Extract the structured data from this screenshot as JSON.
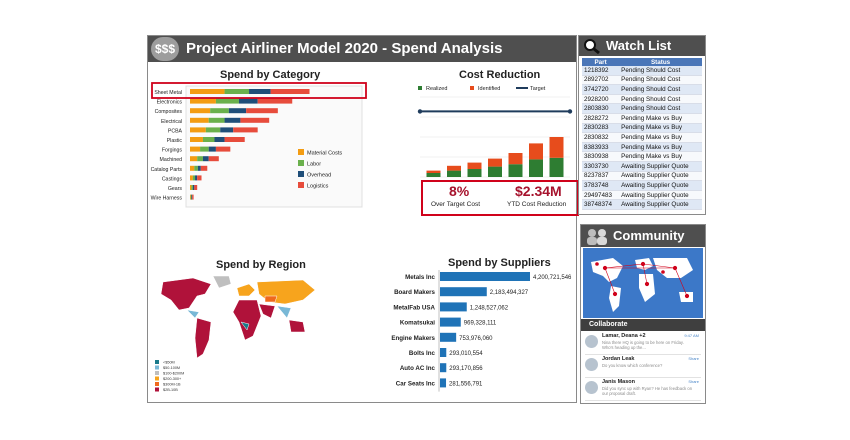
{
  "dashboard": {
    "logo_text": "$$$",
    "title": "Project Airliner Model 2020 - Spend Analysis"
  },
  "category_chart": {
    "title": "Spend by Category",
    "categories": [
      "Sheet Metal",
      "Electronics",
      "Composites",
      "Electrical",
      "PCBA",
      "Plastic",
      "Forgings",
      "Machined",
      "Catalog Parts",
      "Castings",
      "Gears",
      "Wire Harness"
    ],
    "series_names": [
      "Material Costs",
      "Labor",
      "Overhead",
      "Logistics"
    ],
    "colors": [
      "#f39c12",
      "#6ab04c",
      "#1f4e79",
      "#e74c3c"
    ],
    "values": [
      [
        48,
        34,
        30,
        54
      ],
      [
        36,
        32,
        26,
        48
      ],
      [
        28,
        26,
        24,
        44
      ],
      [
        26,
        22,
        22,
        40
      ],
      [
        22,
        20,
        18,
        34
      ],
      [
        18,
        16,
        14,
        28
      ],
      [
        14,
        12,
        10,
        20
      ],
      [
        10,
        8,
        8,
        14
      ],
      [
        6,
        5,
        4,
        9
      ],
      [
        4,
        3,
        3,
        6
      ],
      [
        2,
        2,
        2,
        4
      ],
      [
        1,
        1,
        1,
        2
      ]
    ]
  },
  "cost_reduction": {
    "title": "Cost Reduction",
    "legend": [
      "Realized",
      "Identified",
      "Target"
    ],
    "colors": {
      "realized": "#2e7d32",
      "identified": "#e74c1c",
      "target": "#1f3c5c"
    },
    "realized": [
      5,
      8,
      10,
      13,
      16,
      22,
      24
    ],
    "identified": [
      3,
      6,
      8,
      10,
      14,
      20,
      26
    ],
    "target": 82,
    "ymax": 100,
    "kpi_pct": "8%",
    "kpi_pct_label": "Over Target Cost",
    "kpi_amount": "$2.34M",
    "kpi_amount_label": "YTD Cost Reduction"
  },
  "region": {
    "title": "Spend by Region",
    "legend": [
      {
        "label": "<$50M",
        "color": "#1a7a8a"
      },
      {
        "label": "$50-100M",
        "color": "#79b8d6"
      },
      {
        "label": "$100-$200M",
        "color": "#bfbfbf"
      },
      {
        "label": "$200-300+",
        "color": "#f7a41d"
      },
      {
        "label": "$300M-1B",
        "color": "#f06a1c"
      },
      {
        "label": "$2B-10B",
        "color": "#b0123a"
      }
    ]
  },
  "suppliers": {
    "title": "Spend by Suppliers",
    "color": "#1f73b7",
    "items": [
      {
        "name": "Metals Inc",
        "value": 4200721546,
        "label": "4,200,721,546"
      },
      {
        "name": "Board Makers",
        "value": 2183494327,
        "label": "2,183,494,327"
      },
      {
        "name": "MetalFab USA",
        "value": 1248527062,
        "label": "1,248,527,062"
      },
      {
        "name": "Komatsukai",
        "value": 969328111,
        "label": "969,328,111"
      },
      {
        "name": "Engine Makers",
        "value": 753976060,
        "label": "753,976,060"
      },
      {
        "name": "Bolts Inc",
        "value": 293010554,
        "label": "293,010,554"
      },
      {
        "name": "Auto AC Inc",
        "value": 293170856,
        "label": "293,170,856"
      },
      {
        "name": "Car Seats Inc",
        "value": 281556791,
        "label": "281,556,791"
      }
    ]
  },
  "watch_list": {
    "title": "Watch List",
    "columns": [
      "Part",
      "Status"
    ],
    "rows": [
      [
        "1218392",
        "Pending Should Cost"
      ],
      [
        "2892702",
        "Pending Should Cost"
      ],
      [
        "3742720",
        "Pending Should Cost"
      ],
      [
        "2928200",
        "Pending Should Cost"
      ],
      [
        "2803830",
        "Pending Should Cost"
      ],
      [
        "2828272",
        "Pending Make vs Buy"
      ],
      [
        "2830283",
        "Pending Make vs Buy"
      ],
      [
        "2830832",
        "Pending Make vs Buy"
      ],
      [
        "8383933",
        "Pending Make vs Buy"
      ],
      [
        "3830938",
        "Pending Make vs Buy"
      ],
      [
        "3303730",
        "Awaiting Supplier Quote"
      ],
      [
        "8237837",
        "Awaiting Supplier Quote"
      ],
      [
        "3783748",
        "Awaiting Supplier Quote"
      ],
      [
        "29497483",
        "Awaiting Supplier Quote"
      ],
      [
        "38748374",
        "Awaiting Supplier Quote"
      ]
    ]
  },
  "community": {
    "title": "Community",
    "collaborate": "Collaborate",
    "messages": [
      {
        "name": "Lamar, Deana +2",
        "text": "Nina there HQ is going to be here on Friday. Who's heading up the...",
        "time": "9:47 AM"
      },
      {
        "name": "Jordan Leak",
        "text": "Do you know which conference?",
        "time": "Share"
      },
      {
        "name": "Janis Mason",
        "text": "Did you sync up with Ryan? He has feedback on our proposal draft.",
        "time": "Share"
      }
    ]
  }
}
